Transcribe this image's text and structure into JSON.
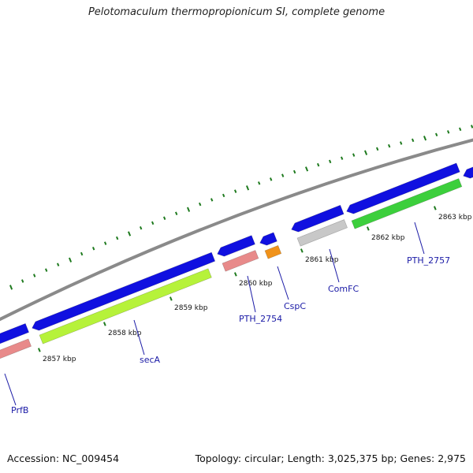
{
  "title": "Pelotomaculum thermopropionicum SI, complete genome",
  "accession": "Accession: NC_009454",
  "summary": "Topology: circular; Length: 3,025,375 bp; Genes: 2,975",
  "colors": {
    "backbone": "#8a8a8a",
    "forward_cds": "#1010e0",
    "tick": "#1e7a1e",
    "label": "#1a1aa6",
    "feature_pink": "#e88a8a",
    "feature_lime": "#b6f23a",
    "feature_orange": "#f0921a",
    "feature_gray": "#c8c8c8",
    "feature_green": "#3ccf3c"
  },
  "kbp_ticks": [
    "2857 kbp",
    "2858 kbp",
    "2859 kbp",
    "2860 kbp",
    "2861 kbp",
    "2862 kbp",
    "2863 kbp"
  ],
  "genes": [
    {
      "name": "PrfB"
    },
    {
      "name": "secA"
    },
    {
      "name": "PTH_2754"
    },
    {
      "name": "CspC"
    },
    {
      "name": "ComFC"
    },
    {
      "name": "PTH_2757"
    }
  ]
}
